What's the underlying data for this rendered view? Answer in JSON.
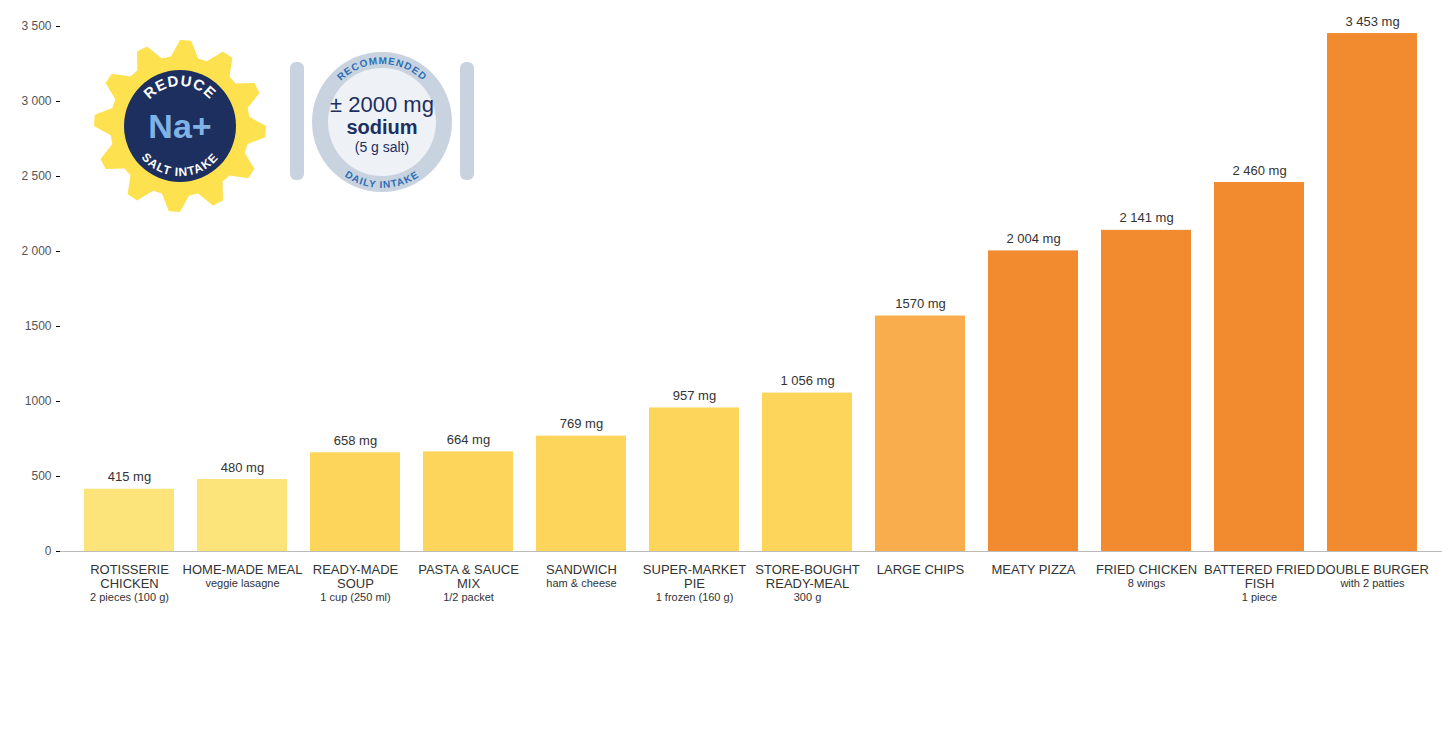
{
  "chart_data": {
    "type": "bar",
    "categories": [
      "ROTISSERIE CHICKEN",
      "HOME-MADE MEAL",
      "READY-MADE SOUP",
      "PASTA & SAUCE MIX",
      "SANDWICH",
      "SUPER-MARKET PIE",
      "STORE-BOUGHT READY-MEAL",
      "LARGE CHIPS",
      "MEATY PIZZA",
      "FRIED CHICKEN",
      "BATTERED FRIED FISH",
      "DOUBLE BURGER"
    ],
    "notes": [
      "2 pieces (100 g)",
      "veggie lasagne",
      "1 cup (250 ml)",
      "1/2 packet",
      "ham & cheese",
      "1 frozen (160 g)",
      "300 g",
      null,
      null,
      "8 wings",
      "1 piece",
      "with 2 patties"
    ],
    "values": [
      415,
      480,
      658,
      664,
      769,
      957,
      1056,
      1570,
      2004,
      2141,
      2460,
      3453
    ],
    "value_labels": [
      "415 mg",
      "480 mg",
      "658 mg",
      "664 mg",
      "769 mg",
      "957 mg",
      "1 056 mg",
      "1570 mg",
      "2 004 mg",
      "2 141 mg",
      "2 460 mg",
      "3 453 mg"
    ],
    "colors": [
      "#fde47a",
      "#fde47a",
      "#fdd55a",
      "#fdd55a",
      "#fdd55a",
      "#fdd55a",
      "#fdd55a",
      "#f9ad4d",
      "#f28b30",
      "#f28b30",
      "#f28b30",
      "#f28b30"
    ],
    "data_labels": true,
    "ylim": [
      0,
      3500
    ],
    "yticks": [
      0,
      500,
      1000,
      1500,
      {
        "value": 2000,
        "label": "2 000"
      },
      {
        "value": 2500,
        "label": "2 500"
      },
      {
        "value": 3000,
        "label": "3 000"
      },
      {
        "value": 3500,
        "label": "3 500"
      }
    ],
    "grid": false,
    "annotations": [
      {
        "top": "REDUCE",
        "center": [
          "Na+"
        ],
        "bottom": "SALT INTAKE"
      },
      {
        "top": "RECOMMENDED",
        "center": [
          "± 2000 mg",
          "sodium",
          "(5 g salt)"
        ],
        "bottom": "DAILY INTAKE"
      }
    ]
  }
}
